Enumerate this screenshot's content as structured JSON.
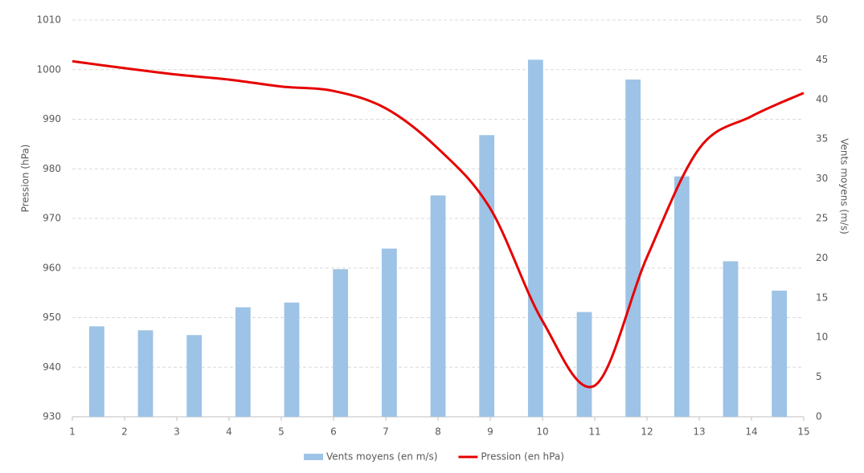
{
  "chart_data": {
    "type": "combo",
    "x": [
      1,
      2,
      3,
      4,
      5,
      6,
      7,
      8,
      9,
      10,
      11,
      12,
      13,
      14,
      15
    ],
    "xlim": [
      1,
      15
    ],
    "xticks": [
      1,
      2,
      3,
      4,
      5,
      6,
      7,
      8,
      9,
      10,
      11,
      12,
      13,
      14,
      15
    ],
    "ylim": [
      930,
      1010
    ],
    "yticks": [
      930,
      940,
      950,
      960,
      970,
      980,
      990,
      1000,
      1010
    ],
    "y2lim": [
      0,
      50
    ],
    "y2ticks": [
      0,
      5,
      10,
      15,
      20,
      25,
      30,
      35,
      40,
      45,
      50
    ],
    "ylabel": "Pression (hPa)",
    "y2label": "Vents moyens (m/s)",
    "grid": true,
    "legend": "bottom",
    "series": [
      {
        "name": "Vents moyens (en m/s)",
        "type": "bar",
        "axis": "y2",
        "color": "#9dc3e6",
        "values": [
          11.4,
          10.9,
          10.3,
          13.8,
          14.4,
          18.6,
          21.2,
          27.9,
          35.5,
          45,
          13.2,
          42.5,
          30.3,
          19.6,
          15.9
        ]
      },
      {
        "name": "Pression (en hPa)",
        "type": "line",
        "axis": "y",
        "color": "#e60000",
        "values": [
          1001.7,
          1000.3,
          999,
          998,
          996.6,
          995.7,
          992.2,
          984.1,
          972,
          949.3,
          936.3,
          962.2,
          984.1,
          990.6,
          995.3
        ]
      }
    ]
  }
}
